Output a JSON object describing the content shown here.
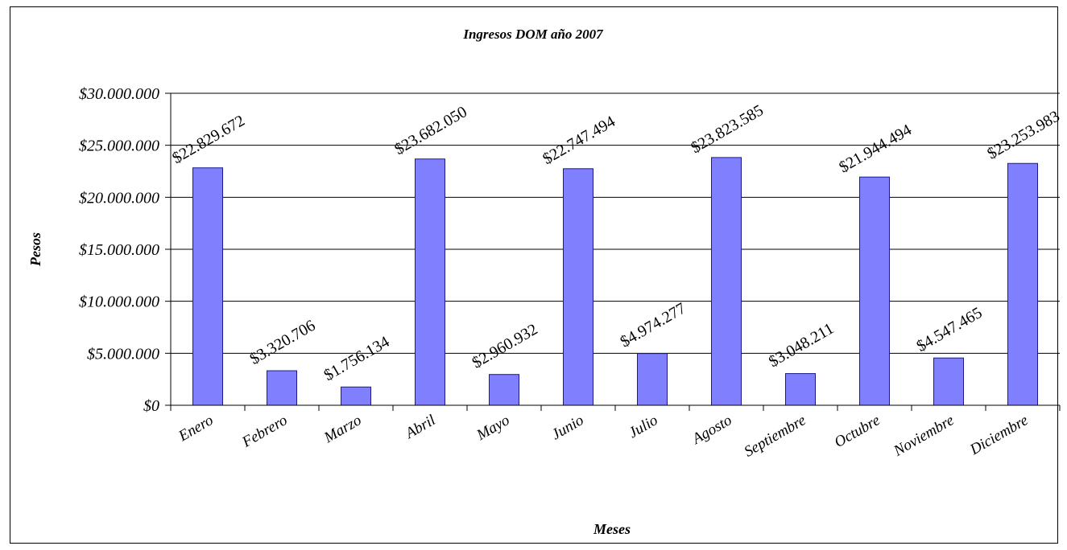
{
  "chart_data": {
    "type": "bar",
    "title": "Ingresos DOM año 2007",
    "xlabel": "Meses",
    "ylabel": "Pesos",
    "categories": [
      "Enero",
      "Febrero",
      "Marzo",
      "Abril",
      "Mayo",
      "Junio",
      "Julio",
      "Agosto",
      "Septiembre",
      "Octubre",
      "Noviembre",
      "Diciembre"
    ],
    "values": [
      22829672,
      3320706,
      1756134,
      23682050,
      2960932,
      22747494,
      4974277,
      23823585,
      3048211,
      21944494,
      4547465,
      23253983
    ],
    "data_labels": [
      "$22.829.672",
      "$3.320.706",
      "$1.756.134",
      "$23.682.050",
      "$2.960.932",
      "$22.747.494",
      "$4.974.277",
      "$23.823.585",
      "$3.048.211",
      "$21.944.494",
      "$4.547.465",
      "$23.253.983"
    ],
    "ylim": [
      0,
      30000000
    ],
    "yticks": [
      0,
      5000000,
      10000000,
      15000000,
      20000000,
      25000000,
      30000000
    ],
    "ytick_labels": [
      "$0",
      "$5.000.000",
      "$10.000.000",
      "$15.000.000",
      "$20.000.000",
      "$25.000.000",
      "$30.000.000"
    ],
    "grid": true,
    "legend": "none",
    "bar_color": "#8080ff"
  }
}
